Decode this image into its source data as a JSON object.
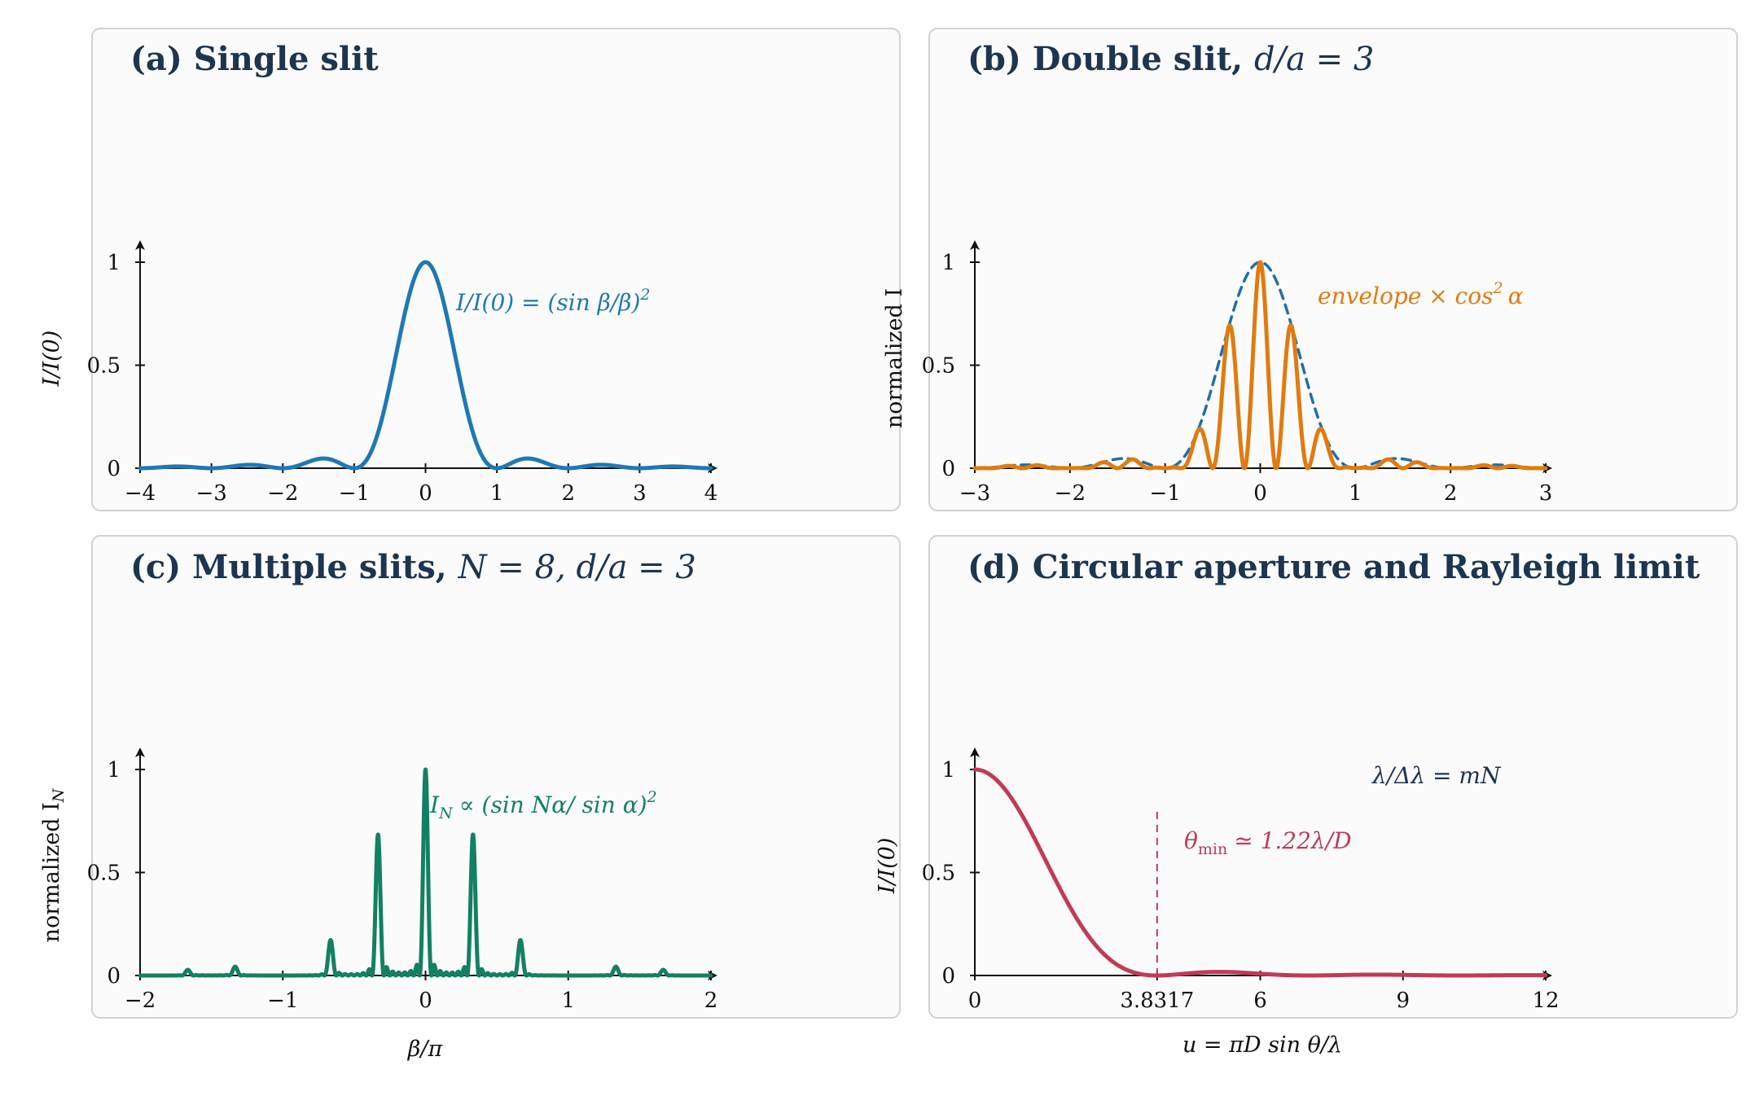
{
  "colors": {
    "single": "#1f78b4",
    "double": "#e07b10",
    "envelope": "#1f6fa8",
    "multi": "#138063",
    "circular": "#c23a56",
    "title": "#1c3550"
  },
  "panels": [
    {
      "title_bold": "(a) Single slit",
      "title_math": ""
    },
    {
      "title_bold": "(b) Double slit,",
      "title_math": "d/a = 3"
    },
    {
      "title_bold": "(c) Multiple slits,",
      "title_math": "N = 8, d/a = 3"
    },
    {
      "title_bold": "(d) Circular aperture and Rayleigh limit",
      "title_math": ""
    }
  ],
  "chart_data": [
    {
      "type": "line",
      "title": "(a) Single slit",
      "xlabel": "",
      "ylabel": "I/I(0)",
      "xlim": [
        -4,
        4
      ],
      "ylim": [
        0,
        1
      ],
      "xticks": [
        -4,
        -3,
        -2,
        -1,
        0,
        1,
        2,
        3,
        4
      ],
      "yticks": [
        0,
        0.5,
        1
      ],
      "series": [
        {
          "name": "I/I(0) = (sin β/β)²",
          "function": "sinc2(pi*x)",
          "x_range": [
            -4,
            4
          ]
        }
      ],
      "annotations": [
        "I/I(0) = (sin β/β)²"
      ]
    },
    {
      "type": "line",
      "title": "(b) Double slit, d/a = 3",
      "xlabel": "",
      "ylabel": "normalized I",
      "xlim": [
        -3,
        3
      ],
      "ylim": [
        0,
        1
      ],
      "xticks": [
        -3,
        -2,
        -1,
        0,
        1,
        2,
        3
      ],
      "yticks": [
        0,
        0.5,
        1
      ],
      "series": [
        {
          "name": "",
          "style": "dashed",
          "function": "sinc2(pi*x)",
          "x_range": [
            -3,
            3
          ]
        },
        {
          "name": "envelope × cos² α",
          "function": "sinc2(pi*x)*cos2(3*pi*x)",
          "x_range": [
            -3,
            3
          ]
        }
      ],
      "annotations": [
        "envelope × cos² α"
      ]
    },
    {
      "type": "line",
      "title": "(c) Multiple slits, N = 8, d/a = 3",
      "xlabel": "β/π",
      "ylabel": "normalized I_N",
      "xlim": [
        -2,
        2
      ],
      "ylim": [
        0,
        1
      ],
      "xticks": [
        -2,
        -1,
        0,
        1,
        2
      ],
      "yticks": [
        0,
        0.5,
        1
      ],
      "series": [
        {
          "name": "I_N ∝ (sin Nα/ sin α)²",
          "function": "sinc2(pi*x)*(sin(8*3*pi*x)/(8*sin(3*pi*x)))^2",
          "x_range": [
            -2,
            2
          ]
        }
      ],
      "annotations": [
        "I_N ∝ (sin Nα/ sin α)²"
      ]
    },
    {
      "type": "line",
      "title": "(d) Circular aperture and Rayleigh limit",
      "xlabel": "u = πD sin θ/λ",
      "ylabel": "I/I(0)",
      "xlim": [
        0,
        12
      ],
      "ylim": [
        0,
        1
      ],
      "xticks": [
        0,
        3.8317,
        6,
        9,
        12
      ],
      "xticklabels": [
        "0",
        "3.8317",
        "6",
        "9",
        "12"
      ],
      "yticks": [
        0,
        0.5,
        1
      ],
      "series": [
        {
          "name": "",
          "function": "(2*J1(x)/x)^2",
          "x_range": [
            0,
            12
          ]
        }
      ],
      "vline": {
        "x": 3.8317,
        "y_to": 0.8
      },
      "annotations": [
        "θmin ≃ 1.22λ/D",
        "λ/Δλ = mN"
      ]
    }
  ],
  "labels": {
    "a_ylabel": "I/I(0)",
    "b_ylabel": "normalized I",
    "c_ylabel": "normalized I",
    "c_ylabel_sub": "N",
    "d_ylabel": "I/I(0)",
    "c_xlabel": "β/π",
    "d_xlabel": "u = πD sin θ/λ",
    "a_ann": "I/I(0) = (sin β/β)",
    "b_ann": "envelope × cos",
    "b_ann_tail": "α",
    "c_ann_I": "I",
    "c_ann_sub": "N",
    "c_ann_rest": "∝ (sin Nα/ sin α)",
    "d_ann_theta": "θ",
    "d_ann_sub": "min",
    "d_ann_rest": "≃ 1.22λ/D",
    "d_ann2": "λ/Δλ = mN",
    "sq": "2"
  }
}
